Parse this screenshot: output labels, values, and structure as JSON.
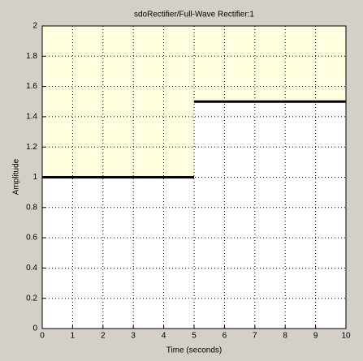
{
  "chart_data": {
    "type": "line",
    "title": "sdoRectifier/Full-Wave Rectifier:1",
    "x_label": "Time (seconds)",
    "y_label": "Amplitude",
    "x": [
      0,
      5,
      5,
      5,
      10
    ],
    "series": [
      {
        "color": "#000000",
        "values": [
          1,
          1,
          null,
          1.5,
          1.5
        ]
      }
    ],
    "shade_above": "#ffffe0",
    "xlim": [
      0,
      10
    ],
    "xticks": [
      0,
      1,
      2,
      3,
      4,
      5,
      6,
      7,
      8,
      9,
      10
    ],
    "ylim": [
      0,
      2
    ],
    "yticks": [
      0,
      0.2,
      0.4,
      0.6,
      0.8,
      1,
      1.2,
      1.4,
      1.6,
      1.8,
      2
    ],
    "grid": true
  }
}
